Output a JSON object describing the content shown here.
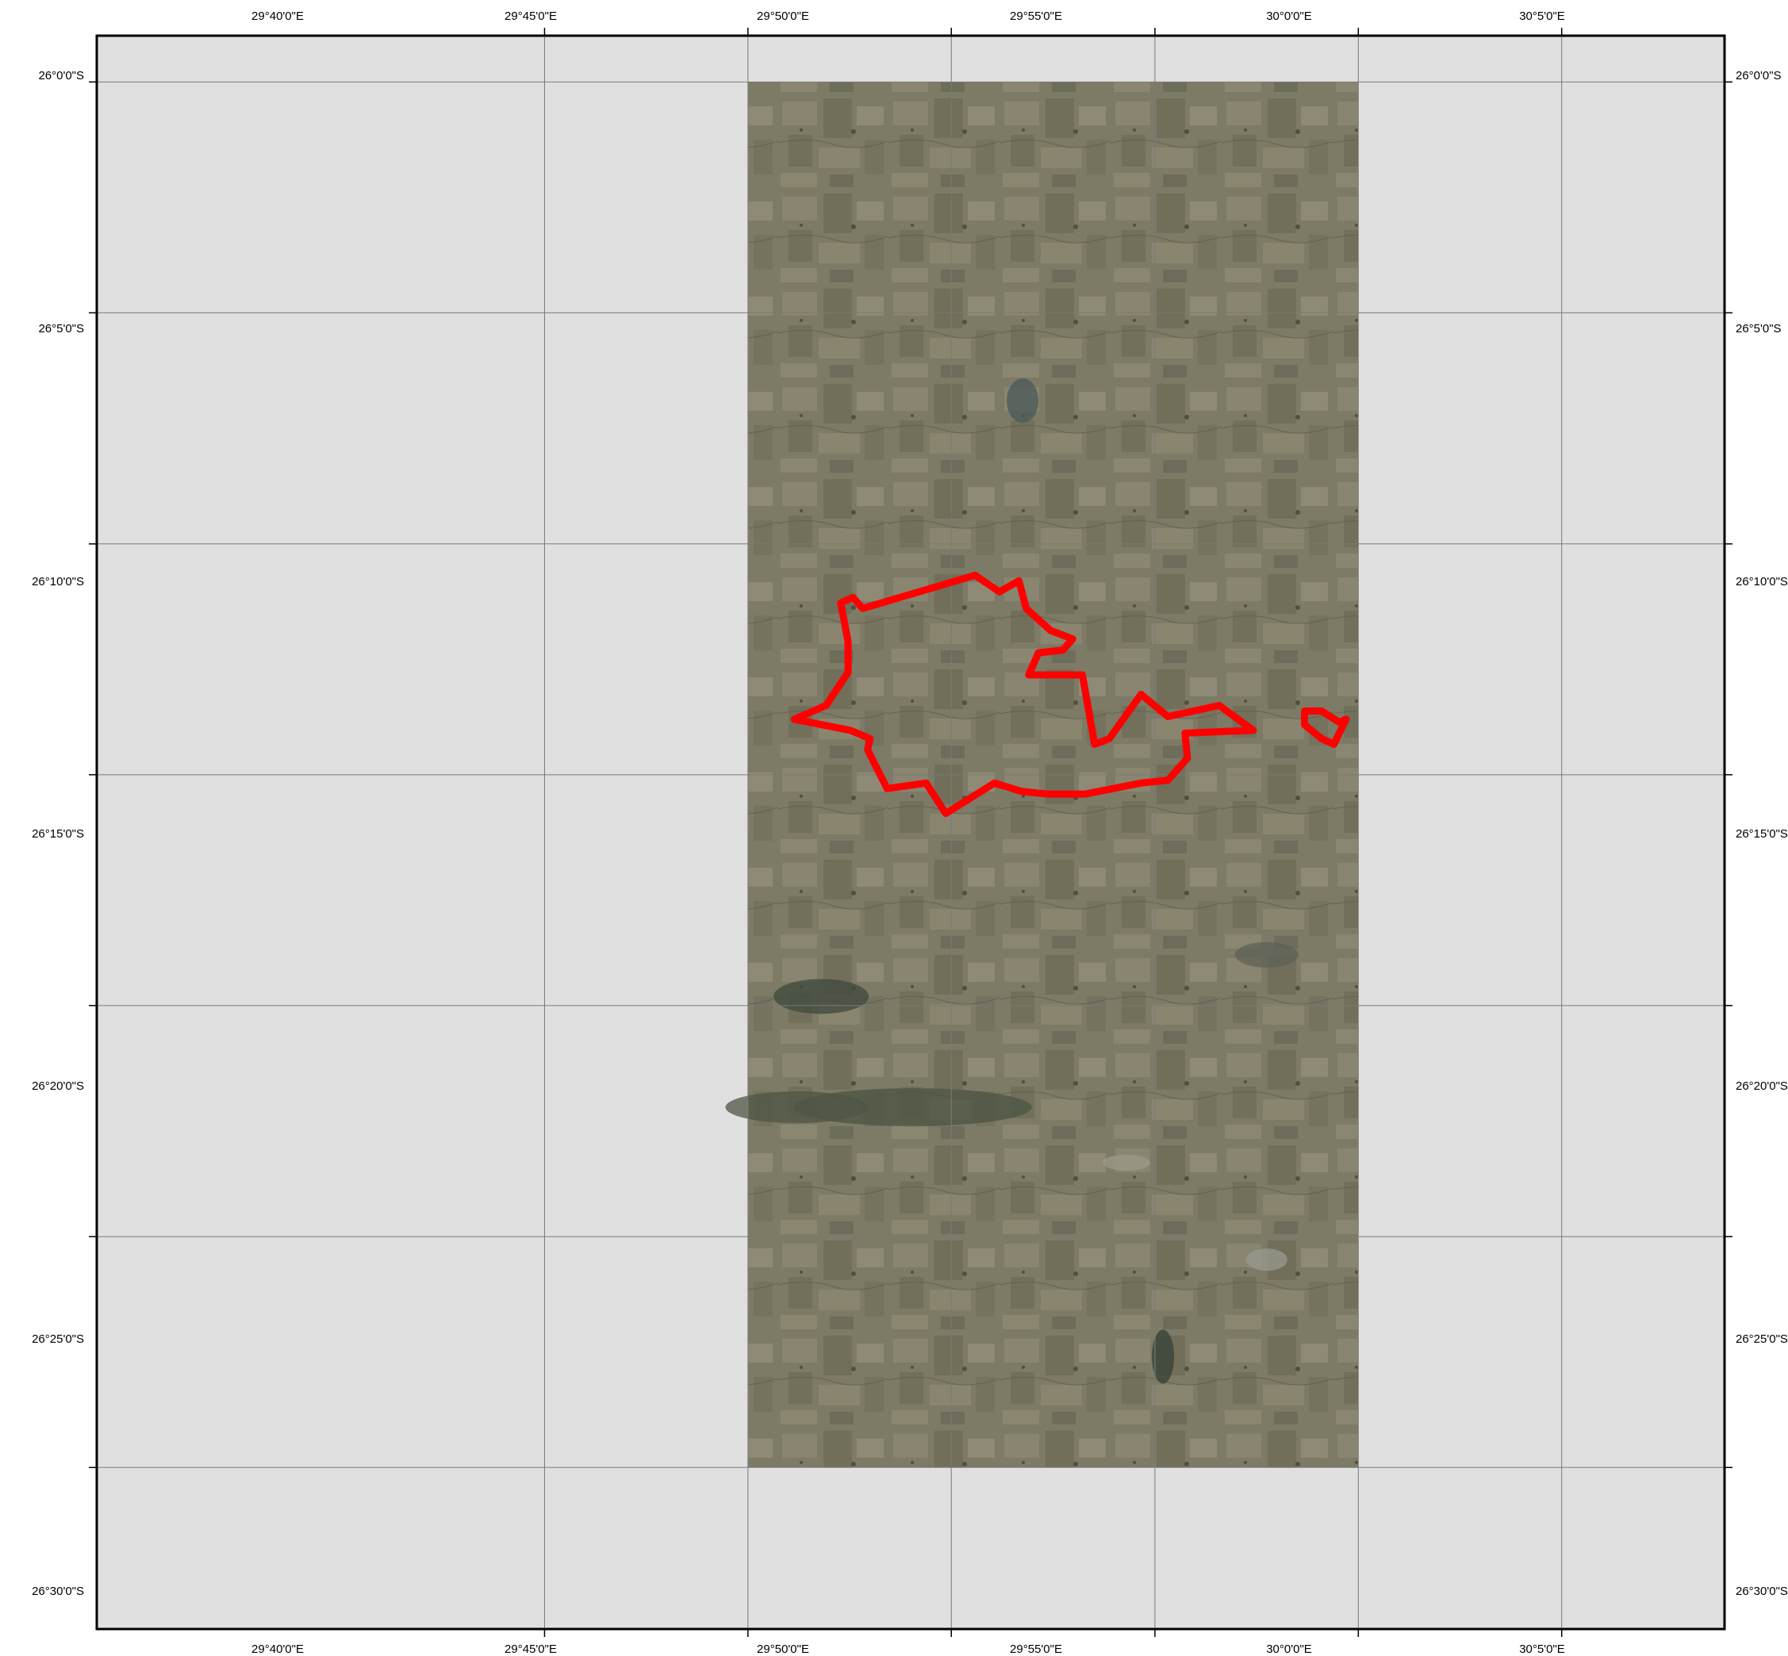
{
  "map": {
    "top_x_labels": [
      "29°40'0\"E",
      "29°45'0\"E",
      "29°50'0\"E",
      "29°55'0\"E",
      "30°0'0\"E",
      "30°5'0\"E"
    ],
    "bottom_x_labels": [
      "29°40'0\"E",
      "29°45'0\"E",
      "29°50'0\"E",
      "29°55'0\"E",
      "30°0'0\"E",
      "30°5'0\"E"
    ],
    "left_y_labels": [
      "26°0'0\"S",
      "26°5'0\"S",
      "26°10'0\"S",
      "26°15'0\"S",
      "26°20'0\"S",
      "26°25'0\"S",
      "26°30'0\"S"
    ],
    "right_y_labels": [
      "26°0'0\"S",
      "26°5'0\"S",
      "26°10'0\"S",
      "26°15'0\"S",
      "26°20'0\"S",
      "26°25'0\"S",
      "26°30'0\"S"
    ],
    "extent": {
      "lon_min": 29.4833,
      "lon_max": 30.15,
      "lat_north": -25.9833,
      "lat_south": -26.5583
    },
    "imagery_extent": {
      "lon_min": 29.75,
      "lon_max": 30.0,
      "lat_north": -26.0,
      "lat_south": -26.5
    },
    "colors": {
      "background": "#e0e0e0",
      "imagery": "#7d7a66",
      "boundary": "#ff0000",
      "frame": "#000000",
      "grid": "#7a7a7a"
    },
    "boundary_main": [
      [
        29.843,
        -26.178
      ],
      [
        29.853,
        -26.184
      ],
      [
        29.861,
        -26.18
      ],
      [
        29.864,
        -26.19
      ],
      [
        29.874,
        -26.198
      ],
      [
        29.883,
        -26.201
      ],
      [
        29.879,
        -26.205
      ],
      [
        29.869,
        -26.206
      ],
      [
        29.865,
        -26.214
      ],
      [
        29.887,
        -26.214
      ],
      [
        29.892,
        -26.239
      ],
      [
        29.898,
        -26.237
      ],
      [
        29.911,
        -26.221
      ],
      [
        29.922,
        -26.229
      ],
      [
        29.943,
        -26.225
      ],
      [
        29.957,
        -26.234
      ],
      [
        29.929,
        -26.235
      ],
      [
        29.93,
        -26.244
      ],
      [
        29.922,
        -26.252
      ],
      [
        29.911,
        -26.253
      ],
      [
        29.888,
        -26.257
      ],
      [
        29.873,
        -26.257
      ],
      [
        29.862,
        -26.256
      ],
      [
        29.851,
        -26.253
      ],
      [
        29.831,
        -26.264
      ],
      [
        29.823,
        -26.253
      ],
      [
        29.807,
        -26.255
      ],
      [
        29.799,
        -26.241
      ],
      [
        29.8,
        -26.237
      ],
      [
        29.792,
        -26.234
      ],
      [
        29.769,
        -26.23
      ],
      [
        29.782,
        -26.225
      ],
      [
        29.791,
        -26.213
      ],
      [
        29.791,
        -26.202
      ],
      [
        29.788,
        -26.188
      ],
      [
        29.793,
        -26.186
      ],
      [
        29.797,
        -26.19
      ]
    ],
    "boundary_east": [
      [
        29.985,
        -26.227
      ],
      [
        29.992,
        -26.231
      ],
      [
        29.995,
        -26.23
      ],
      [
        29.99,
        -26.239
      ],
      [
        29.985,
        -26.237
      ],
      [
        29.978,
        -26.232
      ],
      [
        29.978,
        -26.227
      ]
    ]
  }
}
